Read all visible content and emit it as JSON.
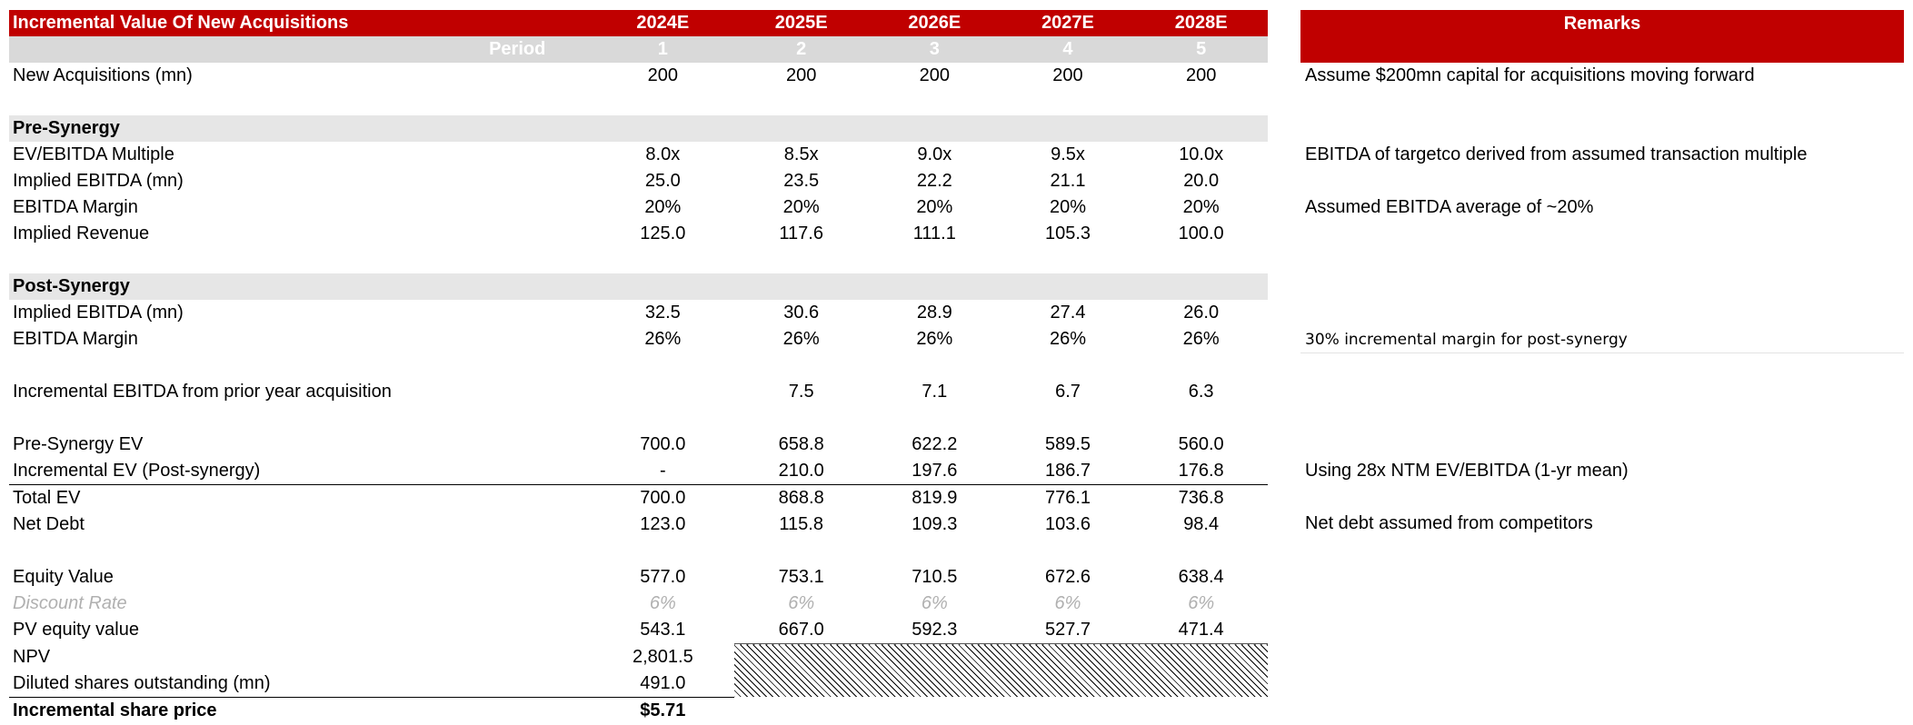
{
  "table": {
    "title": "Incremental Value Of New Acquisitions",
    "years": [
      "2024E",
      "2025E",
      "2026E",
      "2027E",
      "2028E"
    ],
    "period_label": "Period",
    "periods": [
      "1",
      "2",
      "3",
      "4",
      "5"
    ],
    "rows": {
      "new_acq": {
        "label": "New Acquisitions (mn)",
        "values": [
          "200",
          "200",
          "200",
          "200",
          "200"
        ]
      },
      "pre_synergy": "Pre-Synergy",
      "ev_multiple": {
        "label": "EV/EBITDA Multiple",
        "values": [
          "8.0x",
          "8.5x",
          "9.0x",
          "9.5x",
          "10.0x"
        ]
      },
      "implied_ebitda": {
        "label": "Implied EBITDA (mn)",
        "values": [
          "25.0",
          "23.5",
          "22.2",
          "21.1",
          "20.0"
        ]
      },
      "ebitda_margin_pre": {
        "label": "EBITDA Margin",
        "values": [
          "20%",
          "20%",
          "20%",
          "20%",
          "20%"
        ]
      },
      "implied_revenue": {
        "label": "Implied Revenue",
        "values": [
          "125.0",
          "117.6",
          "111.1",
          "105.3",
          "100.0"
        ]
      },
      "post_synergy": "Post-Synergy",
      "implied_ebitda_post": {
        "label": "Implied EBITDA  (mn)",
        "values": [
          "32.5",
          "30.6",
          "28.9",
          "27.4",
          "26.0"
        ]
      },
      "ebitda_margin_post": {
        "label": "EBITDA Margin",
        "values": [
          "26%",
          "26%",
          "26%",
          "26%",
          "26%"
        ]
      },
      "incr_ebitda": {
        "label": "Incremental EBITDA from prior year acquisition",
        "values": [
          "",
          "7.5",
          "7.1",
          "6.7",
          "6.3"
        ]
      },
      "pre_syn_ev": {
        "label": "Pre-Synergy EV",
        "values": [
          "700.0",
          "658.8",
          "622.2",
          "589.5",
          "560.0"
        ]
      },
      "incr_ev": {
        "label": "Incremental EV (Post-synergy)",
        "values": [
          "-",
          "210.0",
          "197.6",
          "186.7",
          "176.8"
        ]
      },
      "total_ev": {
        "label": "Total EV",
        "values": [
          "700.0",
          "868.8",
          "819.9",
          "776.1",
          "736.8"
        ]
      },
      "net_debt": {
        "label": "Net Debt",
        "values": [
          "123.0",
          "115.8",
          "109.3",
          "103.6",
          "98.4"
        ]
      },
      "equity_value": {
        "label": "Equity Value",
        "values": [
          "577.0",
          "753.1",
          "710.5",
          "672.6",
          "638.4"
        ]
      },
      "discount_rate": {
        "label": "Discount Rate",
        "values": [
          "6%",
          "6%",
          "6%",
          "6%",
          "6%"
        ]
      },
      "pv_equity": {
        "label": "PV equity value",
        "values": [
          "543.1",
          "667.0",
          "592.3",
          "527.7",
          "471.4"
        ]
      },
      "npv": {
        "label": "NPV",
        "value": "2,801.5"
      },
      "diluted_shares": {
        "label": "Diluted shares outstanding (mn)",
        "value": "491.0"
      },
      "incr_share_price": {
        "label": "Incremental share price",
        "value": "$5.71"
      }
    }
  },
  "remarks": {
    "title": "Remarks",
    "new_acq": "Assume $200mn capital for acquisitions moving forward",
    "ev_multiple": "EBITDA of targetco derived from assumed transaction multiple",
    "ebitda_margin_pre": "Assumed EBITDA average of ~20%",
    "ebitda_margin_post": "30% incremental margin for post-synergy",
    "incr_ev": "Using 28x NTM EV/EBITDA (1-yr mean)",
    "net_debt": "Net debt assumed from competitors"
  },
  "colors": {
    "header_red": "#c00000",
    "period_gray": "#d9d9d9",
    "section_gray": "#e6e6e6",
    "muted_text": "#b0b0b0"
  }
}
